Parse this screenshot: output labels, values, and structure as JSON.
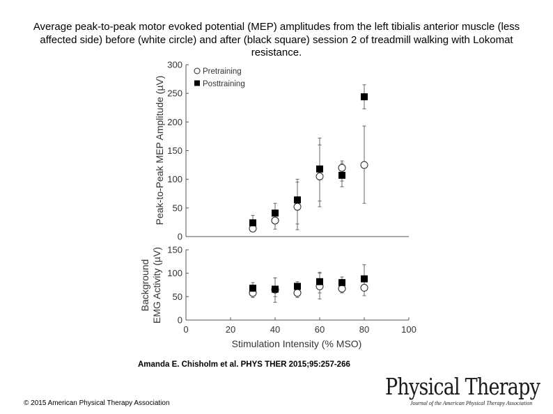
{
  "slide": {
    "title": "Average peak-to-peak motor evoked potential (MEP) amplitudes from the left tibialis anterior muscle (less affected side) before (white circle) and after (black square) session 2 of treadmill walking with Lokomat resistance.",
    "citation": "Amanda E. Chisholm et al. PHYS THER 2015;95:257-266",
    "copyright": "© 2015 American Physical Therapy Association",
    "logo": {
      "main": "Physical Therapy",
      "sub": "Journal of the American Physical Therapy Association"
    }
  },
  "chart_data": [
    {
      "type": "scatter",
      "ylabel": "Peak-to-Peak MEP Amplitude (µV)",
      "ylim": [
        0,
        300
      ],
      "yticks": [
        "0",
        "50",
        "100",
        "150",
        "200",
        "250",
        "300"
      ],
      "xlim": [
        0,
        100
      ],
      "legend": {
        "placement": "top-left"
      },
      "series": [
        {
          "name": "Pretraining",
          "marker": "open-circle",
          "x": [
            30,
            40,
            50,
            60,
            70,
            80
          ],
          "y": [
            14,
            28,
            52,
            105,
            120,
            125
          ],
          "err_low": [
            10,
            13,
            12,
            52,
            87,
            58
          ],
          "err_high": [
            18,
            44,
            95,
            160,
            132,
            193
          ]
        },
        {
          "name": "Posttraining",
          "marker": "filled-square",
          "x": [
            30,
            40,
            50,
            60,
            70,
            80
          ],
          "y": [
            24,
            41,
            64,
            118,
            107,
            244
          ],
          "err_low": [
            16,
            29,
            22,
            62,
            97,
            223
          ],
          "err_high": [
            37,
            58,
            100,
            172,
            128,
            265
          ]
        }
      ]
    },
    {
      "type": "scatter",
      "ylabel": [
        "Background",
        "EMG Activity (µV)"
      ],
      "xlabel": "Stimulation Intensity (% MSO)",
      "ylim": [
        0,
        150
      ],
      "yticks": [
        "0",
        "50",
        "100",
        "150"
      ],
      "xlim": [
        0,
        100
      ],
      "xticks": [
        "0",
        "20",
        "40",
        "60",
        "80",
        "100"
      ],
      "series": [
        {
          "marker": "open-circle",
          "x": [
            30,
            40,
            50,
            60,
            70,
            80
          ],
          "y": [
            58,
            65,
            58,
            72,
            67,
            69
          ],
          "err_low": [
            48,
            38,
            48,
            45,
            58,
            52
          ],
          "err_high": [
            70,
            90,
            72,
            100,
            80,
            87
          ]
        },
        {
          "marker": "filled-square",
          "x": [
            30,
            40,
            50,
            60,
            70,
            80
          ],
          "y": [
            68,
            66,
            72,
            82,
            80,
            88
          ],
          "err_low": [
            58,
            50,
            62,
            58,
            70,
            72
          ],
          "err_high": [
            80,
            90,
            82,
            102,
            92,
            118
          ]
        }
      ]
    }
  ]
}
